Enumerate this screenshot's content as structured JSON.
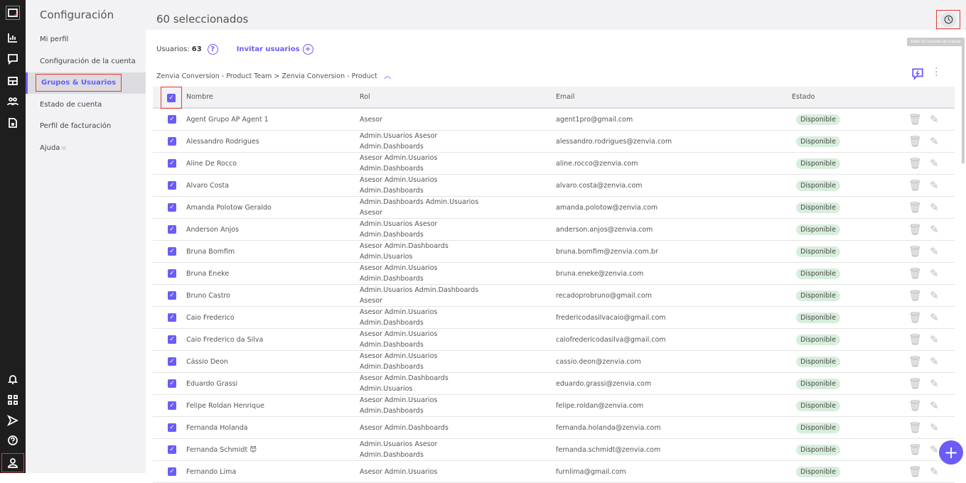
{
  "rail": {
    "top": [
      "logo-icon",
      "chart-icon",
      "chat-icon",
      "table-icon",
      "people-icon",
      "document-icon"
    ],
    "bottom": [
      "bell-icon",
      "apps-icon",
      "send-icon",
      "help-icon",
      "user-icon"
    ]
  },
  "config": {
    "title": "Configuración",
    "items": [
      "Mi perfil",
      "Configuración de la cuenta",
      "Grupos & Usuarios",
      "Estado de cuenta",
      "Perfil de facturación",
      "Ajuda"
    ],
    "active": 2
  },
  "header": {
    "title": "60 seleccionados",
    "tooltip": "Edite los horarios de trabajo"
  },
  "info": {
    "users_label": "Usuarios:",
    "users_count": "63",
    "invite": "Invitar usuarios"
  },
  "breadcrumb": "Zenvia Conversion - Product Team > Zenvia Conversion - Product",
  "table": {
    "columns": [
      "Nombre",
      "Rol",
      "Email",
      "Estado"
    ],
    "rows": [
      {
        "name": "Agent Grupo AP Agent 1",
        "role": [
          "Asesor"
        ],
        "email": "agent1pro@gmail.com",
        "status": "Disponible"
      },
      {
        "name": "Alessandro Rodrigues",
        "role": [
          "Admin.Usuarios Asesor",
          "Admin.Dashboards"
        ],
        "email": "alessandro.rodrigues@zenvia.com",
        "status": "Disponible"
      },
      {
        "name": "Aline De Rocco",
        "role": [
          "Asesor Admin.Usuarios",
          "Admin.Dashboards"
        ],
        "email": "aline.rocco@zenvia.com",
        "status": "Disponible"
      },
      {
        "name": "Alvaro Costa",
        "role": [
          "Asesor Admin.Usuarios",
          "Admin.Dashboards"
        ],
        "email": "alvaro.costa@zenvia.com",
        "status": "Disponible"
      },
      {
        "name": "Amanda Polotow Geraldo",
        "role": [
          "Admin.Dashboards Admin.Usuarios",
          "Asesor"
        ],
        "email": "amanda.polotow@zenvia.com",
        "status": "Disponible"
      },
      {
        "name": "Anderson Anjos",
        "role": [
          "Admin.Usuarios Asesor",
          "Admin.Dashboards"
        ],
        "email": "anderson.anjos@zenvia.com",
        "status": "Disponible"
      },
      {
        "name": "Bruna Bomfim",
        "role": [
          "Asesor Admin.Dashboards",
          "Admin.Usuarios"
        ],
        "email": "bruna.bomfim@zenvia.com.br",
        "status": "Disponible"
      },
      {
        "name": "Bruna Eneke",
        "role": [
          "Asesor Admin.Usuarios",
          "Admin.Dashboards"
        ],
        "email": "bruna.eneke@zenvia.com",
        "status": "Disponible"
      },
      {
        "name": "Bruno Castro",
        "role": [
          "Admin.Usuarios Admin.Dashboards",
          "Asesor"
        ],
        "email": "recadoprobruno@gmail.com",
        "status": "Disponible"
      },
      {
        "name": "Caio Frederico",
        "role": [
          "Asesor Admin.Usuarios",
          "Admin.Dashboards"
        ],
        "email": "fredericodasilvacaio@gmail.com",
        "status": "Disponible"
      },
      {
        "name": "Caio Frederico da Silva",
        "role": [
          "Asesor Admin.Usuarios",
          "Admin.Dashboards"
        ],
        "email": "caiofredericodasilva@gmail.com",
        "status": "Disponible"
      },
      {
        "name": "Cássio Deon",
        "role": [
          "Asesor Admin.Usuarios",
          "Admin.Dashboards"
        ],
        "email": "cassio.deon@zenvia.com",
        "status": "Disponible"
      },
      {
        "name": "Eduardo Grassi",
        "role": [
          "Asesor Admin.Dashboards",
          "Admin.Usuarios"
        ],
        "email": "eduardo.grassi@zenvia.com",
        "status": "Disponible"
      },
      {
        "name": "Felipe Roldan Henrique",
        "role": [
          "Asesor Admin.Usuarios",
          "Admin.Dashboards"
        ],
        "email": "felipe.roldan@zenvia.com",
        "status": "Disponible"
      },
      {
        "name": "Fernanda Holanda",
        "role": [
          "Asesor Admin.Dashboards"
        ],
        "email": "fernanda.holanda@zenvia.com",
        "status": "Disponible"
      },
      {
        "name": "Fernanda Schmidt 😈",
        "role": [
          "Admin.Usuarios Asesor",
          "Admin.Dashboards"
        ],
        "email": "fernanda.schmidt@zenvia.com",
        "status": "Disponible"
      },
      {
        "name": "Fernando Lima",
        "role": [
          "Asesor Admin.Usuarios",
          ""
        ],
        "email": "furnlima@gmail.com",
        "status": "Disponible"
      }
    ]
  },
  "colors": {
    "accent": "#6b5cf6",
    "rail": "#1e1e1e",
    "badge": "#d7eedb",
    "highlight": "#e53935"
  }
}
